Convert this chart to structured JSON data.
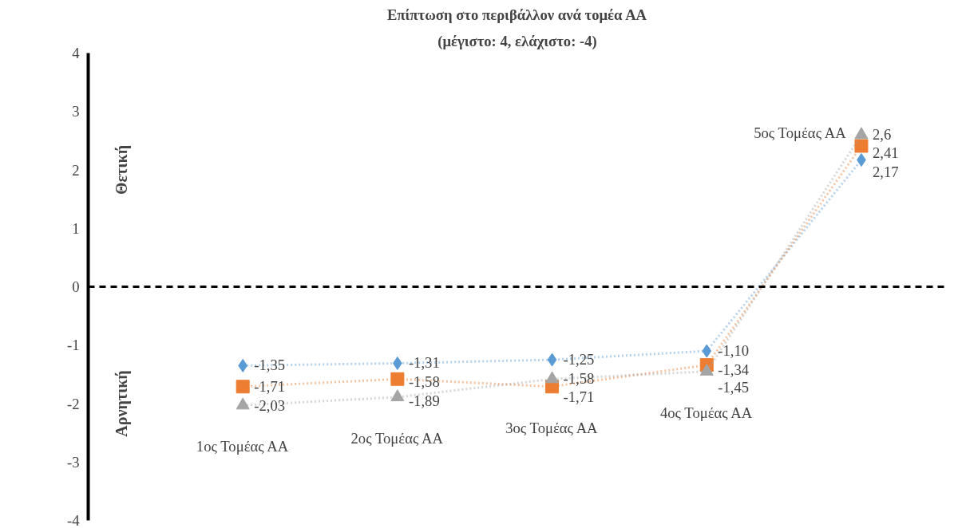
{
  "chart_data": {
    "type": "line",
    "title": "Επίπτωση στο περιβάλλον ανά τομέα ΑΑ",
    "subtitle": "(μέγιστο: 4, ελάχιστο: -4)",
    "categories": [
      "1ος Τομέας ΑΑ",
      "2ος Τομέας ΑΑ",
      "3ος Τομέας ΑΑ",
      "4ος Τομέας ΑΑ",
      "5ος Τομέας ΑΑ"
    ],
    "series": [
      {
        "color": "#5b9bd5",
        "marker": "diamond",
        "values": [
          -1.35,
          -1.31,
          -1.25,
          -1.1,
          2.17
        ],
        "value_labels": [
          "-1,35",
          "-1,31",
          "-1,25",
          "-1,10",
          "2,17"
        ]
      },
      {
        "color": "#ed7d31",
        "marker": "square",
        "values": [
          -1.71,
          -1.58,
          -1.71,
          -1.34,
          2.41
        ],
        "value_labels": [
          "-1,71",
          "-1,58",
          "-1,71",
          "-1,34",
          "2,41"
        ]
      },
      {
        "color": "#a5a5a5",
        "marker": "triangle",
        "values": [
          -2.03,
          -1.89,
          -1.58,
          -1.45,
          2.6
        ],
        "value_labels": [
          "-2,03",
          "-1,89",
          "-1,58",
          "-1,45",
          "2,6"
        ]
      }
    ],
    "line_style": "dotted",
    "ylim": [
      -4,
      4
    ],
    "yticks": [
      -4,
      -3,
      -2,
      -1,
      0,
      1,
      2,
      3,
      4
    ],
    "ref_lines": [
      {
        "axis": "y",
        "value": 0,
        "color": "#000000",
        "line_style": "dashed"
      }
    ],
    "annotations": [
      "Θετική",
      "Αρνητική"
    ],
    "tick_labels": "y",
    "grid": false
  }
}
